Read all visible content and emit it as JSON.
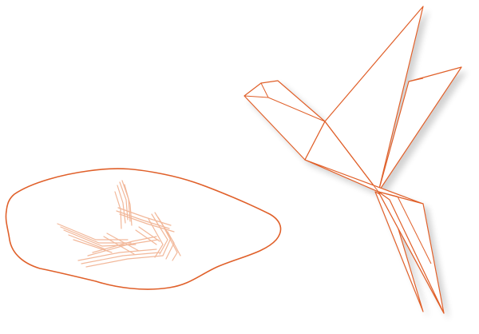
{
  "illustration": {
    "stroke_color": "#e0602a",
    "reflection_color": "#f2b89a",
    "fill_color": "#ffffff",
    "subjects": [
      "origami-bird",
      "puddle-reflection"
    ]
  }
}
